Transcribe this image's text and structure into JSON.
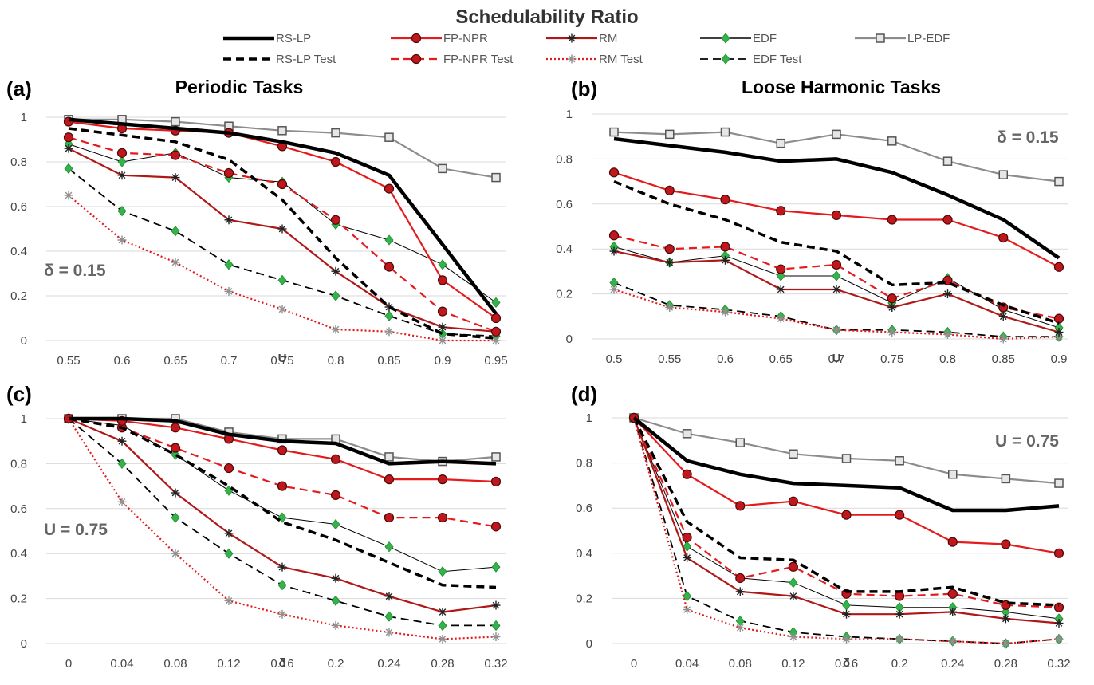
{
  "figure": {
    "title": "Schedulability Ratio"
  },
  "series_styles": [
    {
      "name": "RS-LP",
      "color": "#000000",
      "dash": "solid",
      "width": 4.5,
      "marker": "none"
    },
    {
      "name": "FP-NPR",
      "color": "#e41a1c",
      "dash": "solid",
      "width": 2.2,
      "marker": "circle"
    },
    {
      "name": "RM",
      "color": "#b01818",
      "dash": "solid",
      "width": 2.2,
      "marker": "star"
    },
    {
      "name": "EDF",
      "color": "#000000",
      "dash": "solid",
      "width": 1,
      "marker": "diamond",
      "marker_color": "#34b34a"
    },
    {
      "name": "LP-EDF",
      "color": "#8c8c8c",
      "dash": "solid",
      "width": 2.2,
      "marker": "square"
    },
    {
      "name": "RS-LP Test",
      "color": "#000000",
      "dash": "dashed",
      "width": 3.5,
      "marker": "none"
    },
    {
      "name": "FP-NPR Test",
      "color": "#e41a1c",
      "dash": "dashed",
      "width": 2.2,
      "marker": "circle"
    },
    {
      "name": "RM Test",
      "color": "#e41a1c",
      "dash": "dotted",
      "width": 2.2,
      "marker": "star",
      "marker_color": "#909090"
    },
    {
      "name": "EDF Test",
      "color": "#000000",
      "dash": "dashed",
      "width": 1.8,
      "marker": "diamond",
      "marker_color": "#34b34a"
    }
  ],
  "chart_data": [
    {
      "type": "line",
      "panel_label": "(a)",
      "title": "Periodic Tasks",
      "annotation": "δ = 0.15",
      "xlabel": "U",
      "ylabel": "",
      "categories": [
        "0.55",
        "0.6",
        "0.65",
        "0.7",
        "0.75",
        "0.8",
        "0.85",
        "0.9",
        "0.95"
      ],
      "ylim": [
        0,
        1
      ],
      "yticks": [
        "0",
        "0.2",
        "0.4",
        "0.6",
        "0.8",
        "1"
      ],
      "grid": true,
      "series": [
        {
          "name": "RS-LP",
          "values": [
            0.99,
            0.97,
            0.95,
            0.93,
            0.89,
            0.84,
            0.74,
            0.43,
            0.12
          ]
        },
        {
          "name": "FP-NPR",
          "values": [
            0.98,
            0.95,
            0.94,
            0.93,
            0.87,
            0.8,
            0.68,
            0.27,
            0.1
          ]
        },
        {
          "name": "RM",
          "values": [
            0.86,
            0.74,
            0.73,
            0.54,
            0.5,
            0.31,
            0.15,
            0.06,
            0.04
          ]
        },
        {
          "name": "EDF",
          "values": [
            0.88,
            0.8,
            0.84,
            0.73,
            0.71,
            0.52,
            0.45,
            0.34,
            0.17
          ]
        },
        {
          "name": "LP-EDF",
          "values": [
            0.99,
            0.99,
            0.98,
            0.96,
            0.94,
            0.93,
            0.91,
            0.77,
            0.73
          ]
        },
        {
          "name": "RS-LP Test",
          "values": [
            0.95,
            0.92,
            0.89,
            0.81,
            0.63,
            0.37,
            0.15,
            0.03,
            0.01
          ]
        },
        {
          "name": "FP-NPR Test",
          "values": [
            0.91,
            0.84,
            0.83,
            0.75,
            0.7,
            0.54,
            0.33,
            0.13,
            0.04
          ]
        },
        {
          "name": "RM Test",
          "values": [
            0.65,
            0.45,
            0.35,
            0.22,
            0.14,
            0.05,
            0.04,
            0.0,
            0.0
          ]
        },
        {
          "name": "EDF Test",
          "values": [
            0.77,
            0.58,
            0.49,
            0.34,
            0.27,
            0.2,
            0.11,
            0.03,
            0.02
          ]
        }
      ]
    },
    {
      "type": "line",
      "panel_label": "(b)",
      "title": "Loose Harmonic Tasks",
      "annotation": "δ = 0.15",
      "xlabel": "U",
      "ylabel": "",
      "categories": [
        "0.5",
        "0.55",
        "0.6",
        "0.65",
        "0.7",
        "0.75",
        "0.8",
        "0.85",
        "0.9"
      ],
      "ylim": [
        0,
        1
      ],
      "yticks": [
        "0",
        "0.2",
        "0.4",
        "0.6",
        "0.8",
        "1"
      ],
      "grid": true,
      "series": [
        {
          "name": "RS-LP",
          "values": [
            0.89,
            0.86,
            0.83,
            0.79,
            0.8,
            0.74,
            0.64,
            0.53,
            0.36
          ]
        },
        {
          "name": "FP-NPR",
          "values": [
            0.74,
            0.66,
            0.62,
            0.57,
            0.55,
            0.53,
            0.53,
            0.45,
            0.32
          ]
        },
        {
          "name": "RM",
          "values": [
            0.39,
            0.34,
            0.35,
            0.22,
            0.22,
            0.14,
            0.2,
            0.1,
            0.03
          ]
        },
        {
          "name": "EDF",
          "values": [
            0.41,
            0.34,
            0.37,
            0.28,
            0.28,
            0.16,
            0.27,
            0.13,
            0.05
          ]
        },
        {
          "name": "LP-EDF",
          "values": [
            0.92,
            0.91,
            0.92,
            0.87,
            0.91,
            0.88,
            0.79,
            0.73,
            0.7
          ]
        },
        {
          "name": "RS-LP Test",
          "values": [
            0.7,
            0.6,
            0.53,
            0.43,
            0.39,
            0.24,
            0.25,
            0.15,
            0.07
          ]
        },
        {
          "name": "FP-NPR Test",
          "values": [
            0.46,
            0.4,
            0.41,
            0.31,
            0.33,
            0.18,
            0.26,
            0.14,
            0.09
          ]
        },
        {
          "name": "RM Test",
          "values": [
            0.22,
            0.14,
            0.12,
            0.09,
            0.04,
            0.03,
            0.02,
            0.0,
            0.01
          ]
        },
        {
          "name": "EDF Test",
          "values": [
            0.25,
            0.15,
            0.13,
            0.1,
            0.04,
            0.04,
            0.03,
            0.01,
            0.01
          ]
        }
      ]
    },
    {
      "type": "line",
      "panel_label": "(c)",
      "title": "",
      "annotation": "U = 0.75",
      "xlabel": "δ",
      "ylabel": "",
      "categories": [
        "0",
        "0.04",
        "0.08",
        "0.12",
        "0.16",
        "0.2",
        "0.24",
        "0.28",
        "0.32"
      ],
      "ylim": [
        0,
        1
      ],
      "yticks": [
        "0",
        "0.2",
        "0.4",
        "0.6",
        "0.8",
        "1"
      ],
      "grid": true,
      "series": [
        {
          "name": "RS-LP",
          "values": [
            1.0,
            1.0,
            0.99,
            0.93,
            0.9,
            0.89,
            0.8,
            0.81,
            0.8
          ]
        },
        {
          "name": "FP-NPR",
          "values": [
            1.0,
            0.99,
            0.96,
            0.91,
            0.86,
            0.82,
            0.73,
            0.73,
            0.72
          ]
        },
        {
          "name": "RM",
          "values": [
            1.0,
            0.9,
            0.67,
            0.49,
            0.34,
            0.29,
            0.21,
            0.14,
            0.17
          ]
        },
        {
          "name": "EDF",
          "values": [
            1.0,
            0.97,
            0.84,
            0.68,
            0.56,
            0.53,
            0.43,
            0.32,
            0.34
          ]
        },
        {
          "name": "LP-EDF",
          "values": [
            1.0,
            1.0,
            1.0,
            0.94,
            0.91,
            0.91,
            0.83,
            0.81,
            0.83
          ]
        },
        {
          "name": "RS-LP Test",
          "values": [
            1.0,
            0.96,
            0.84,
            0.7,
            0.54,
            0.46,
            0.36,
            0.26,
            0.25
          ]
        },
        {
          "name": "FP-NPR Test",
          "values": [
            1.0,
            0.96,
            0.87,
            0.78,
            0.7,
            0.66,
            0.56,
            0.56,
            0.52
          ]
        },
        {
          "name": "RM Test",
          "values": [
            1.0,
            0.63,
            0.4,
            0.19,
            0.13,
            0.08,
            0.05,
            0.02,
            0.03
          ]
        },
        {
          "name": "EDF Test",
          "values": [
            1.0,
            0.8,
            0.56,
            0.4,
            0.26,
            0.19,
            0.12,
            0.08,
            0.08
          ]
        }
      ]
    },
    {
      "type": "line",
      "panel_label": "(d)",
      "title": "",
      "annotation": "U = 0.75",
      "xlabel": "δ",
      "ylabel": "",
      "categories": [
        "0",
        "0.04",
        "0.08",
        "0.12",
        "0.16",
        "0.2",
        "0.24",
        "0.28",
        "0.32"
      ],
      "ylim": [
        0,
        1
      ],
      "yticks": [
        "0",
        "0.2",
        "0.4",
        "0.6",
        "0.8",
        "1"
      ],
      "grid": true,
      "series": [
        {
          "name": "RS-LP",
          "values": [
            1.0,
            0.81,
            0.75,
            0.71,
            0.7,
            0.69,
            0.59,
            0.59,
            0.61
          ]
        },
        {
          "name": "FP-NPR",
          "values": [
            1.0,
            0.75,
            0.61,
            0.63,
            0.57,
            0.57,
            0.45,
            0.44,
            0.4
          ]
        },
        {
          "name": "RM",
          "values": [
            1.0,
            0.38,
            0.23,
            0.21,
            0.13,
            0.13,
            0.14,
            0.11,
            0.09
          ]
        },
        {
          "name": "EDF",
          "values": [
            1.0,
            0.43,
            0.29,
            0.27,
            0.17,
            0.16,
            0.16,
            0.14,
            0.11
          ]
        },
        {
          "name": "LP-EDF",
          "values": [
            1.0,
            0.93,
            0.89,
            0.84,
            0.82,
            0.81,
            0.75,
            0.73,
            0.71
          ]
        },
        {
          "name": "RS-LP Test",
          "values": [
            1.0,
            0.54,
            0.38,
            0.37,
            0.23,
            0.23,
            0.25,
            0.18,
            0.17
          ]
        },
        {
          "name": "FP-NPR Test",
          "values": [
            1.0,
            0.47,
            0.29,
            0.34,
            0.22,
            0.21,
            0.22,
            0.17,
            0.16
          ]
        },
        {
          "name": "RM Test",
          "values": [
            1.0,
            0.15,
            0.07,
            0.03,
            0.02,
            0.02,
            0.01,
            0.0,
            0.02
          ]
        },
        {
          "name": "EDF Test",
          "values": [
            1.0,
            0.21,
            0.1,
            0.05,
            0.03,
            0.02,
            0.01,
            0.0,
            0.02
          ]
        }
      ]
    }
  ]
}
